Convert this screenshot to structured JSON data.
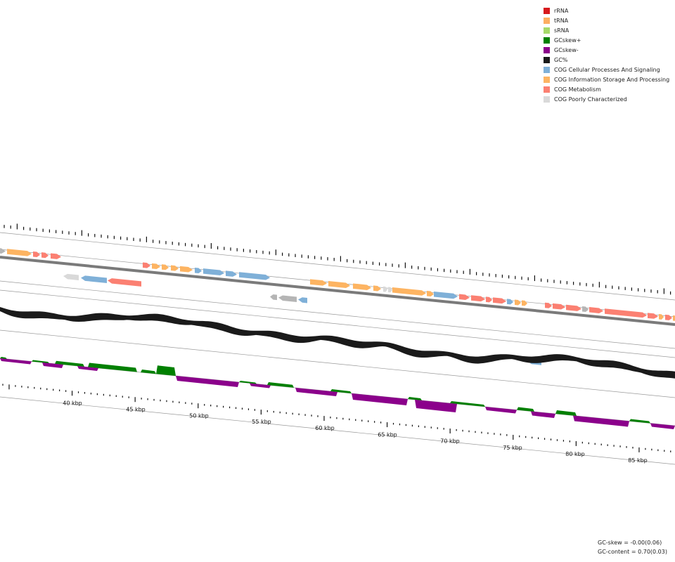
{
  "legend": [
    {
      "label": "rRNA",
      "color": "#d7191c",
      "icon": "square"
    },
    {
      "label": "tRNA",
      "color": "#fdae61",
      "icon": "square"
    },
    {
      "label": "sRNA",
      "color": "#a6d96a",
      "icon": "square"
    },
    {
      "label": "GCskew+",
      "color": "#008000",
      "icon": "square"
    },
    {
      "label": "GCskew-",
      "color": "#8b008b",
      "icon": "square"
    },
    {
      "label": "GC%",
      "color": "#1a1a1a",
      "icon": "square"
    },
    {
      "label": "COG Cellular Processes And Signaling",
      "color": "#7fb0d8",
      "icon": "square"
    },
    {
      "label": "COG Information Storage And Processing",
      "color": "#fdb462",
      "icon": "square"
    },
    {
      "label": "COG Metabolism",
      "color": "#fb8072",
      "icon": "square"
    },
    {
      "label": "COG Poorly Characterized",
      "color": "#d9d9d9",
      "icon": "square"
    }
  ],
  "axis": {
    "tick_labels": [
      "40 kbp",
      "45 kbp",
      "50 kbp",
      "55 kbp",
      "60 kbp",
      "65 kbp",
      "70 kbp",
      "75 kbp",
      "80 kbp",
      "85 kbp"
    ]
  },
  "stats": {
    "gc_skew": "GC-skew = -0.00(0.06)",
    "gc_content": "GC-content = 0.70(0.03)"
  },
  "colors": {
    "backbone": "#7a7a7a",
    "guide": "#999999",
    "gc_content": "#1a1a1a",
    "gc_skew_pos": "#008000",
    "gc_skew_neg": "#8b008b",
    "cog_cellular": "#7fb0d8",
    "cog_information": "#fdb462",
    "cog_metabolism": "#fb8072",
    "cog_poor": "#d9d9d9",
    "trna": "#fdae61",
    "unclassified": "#b5b5b5"
  }
}
